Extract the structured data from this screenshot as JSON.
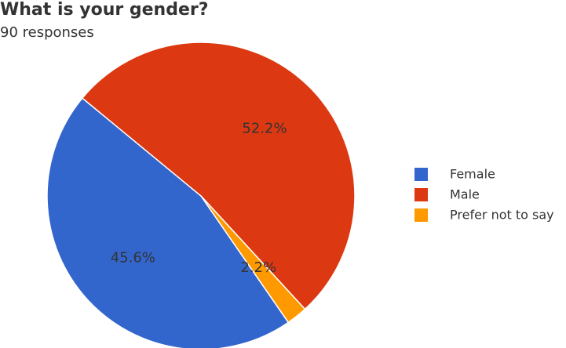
{
  "chart_data": {
    "type": "pie",
    "title": "What is your gender?",
    "subtitle": "90 responses",
    "categories": [
      "Female",
      "Male",
      "Prefer not to say"
    ],
    "values": [
      45.6,
      52.2,
      2.2
    ],
    "value_labels": [
      "45.6%",
      "52.2%",
      "2.2%"
    ],
    "colors": [
      "#3366cc",
      "#dc3912",
      "#ff9900"
    ],
    "legend": "right"
  }
}
